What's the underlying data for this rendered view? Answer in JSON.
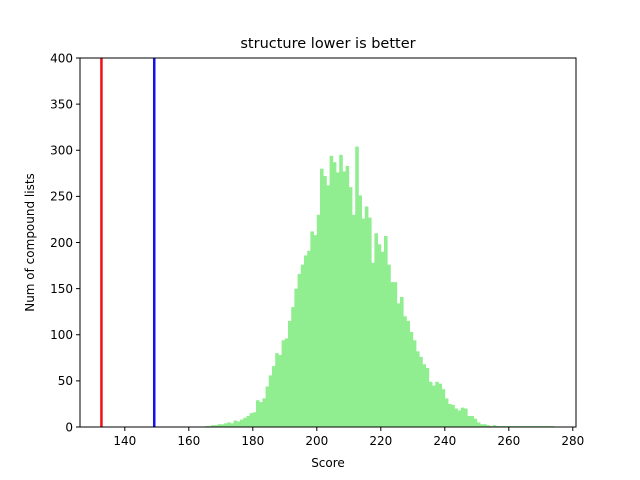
{
  "chart_data": {
    "type": "bar",
    "title": "structure lower is better",
    "xlabel": "Score",
    "ylabel": "Num of compound lists",
    "xlim": [
      126,
      281
    ],
    "ylim": [
      0,
      400
    ],
    "x_ticks": [
      140,
      160,
      180,
      200,
      220,
      240,
      260,
      280
    ],
    "y_ticks": [
      0,
      50,
      100,
      150,
      200,
      250,
      300,
      350,
      400
    ],
    "grid": false,
    "legend": "none",
    "histogram": {
      "color": "#90ee90",
      "bin_width": 1,
      "bin_start": 165,
      "counts": [
        1,
        1,
        2,
        2,
        3,
        3,
        4,
        5,
        4,
        7,
        6,
        8,
        10,
        12,
        15,
        16,
        29,
        27,
        31,
        44,
        56,
        66,
        80,
        78,
        94,
        96,
        115,
        130,
        150,
        166,
        176,
        186,
        191,
        212,
        208,
        230,
        280,
        272,
        262,
        294,
        287,
        276,
        295,
        277,
        283,
        260,
        230,
        304,
        251,
        226,
        239,
        227,
        178,
        210,
        198,
        190,
        207,
        176,
        157,
        157,
        134,
        141,
        120,
        115,
        103,
        94,
        82,
        76,
        68,
        64,
        49,
        45,
        49,
        47,
        41,
        31,
        25,
        24,
        20,
        18,
        21,
        20,
        12,
        12,
        9,
        5,
        3,
        3,
        2,
        1,
        2,
        1,
        1,
        1,
        1,
        1,
        1,
        1,
        1,
        1,
        1,
        1,
        1,
        1,
        1,
        1,
        1,
        1,
        1
      ]
    },
    "vlines": [
      {
        "x": 132.7,
        "color": "#ee1111"
      },
      {
        "x": 149.2,
        "color": "#1111ee"
      }
    ]
  }
}
